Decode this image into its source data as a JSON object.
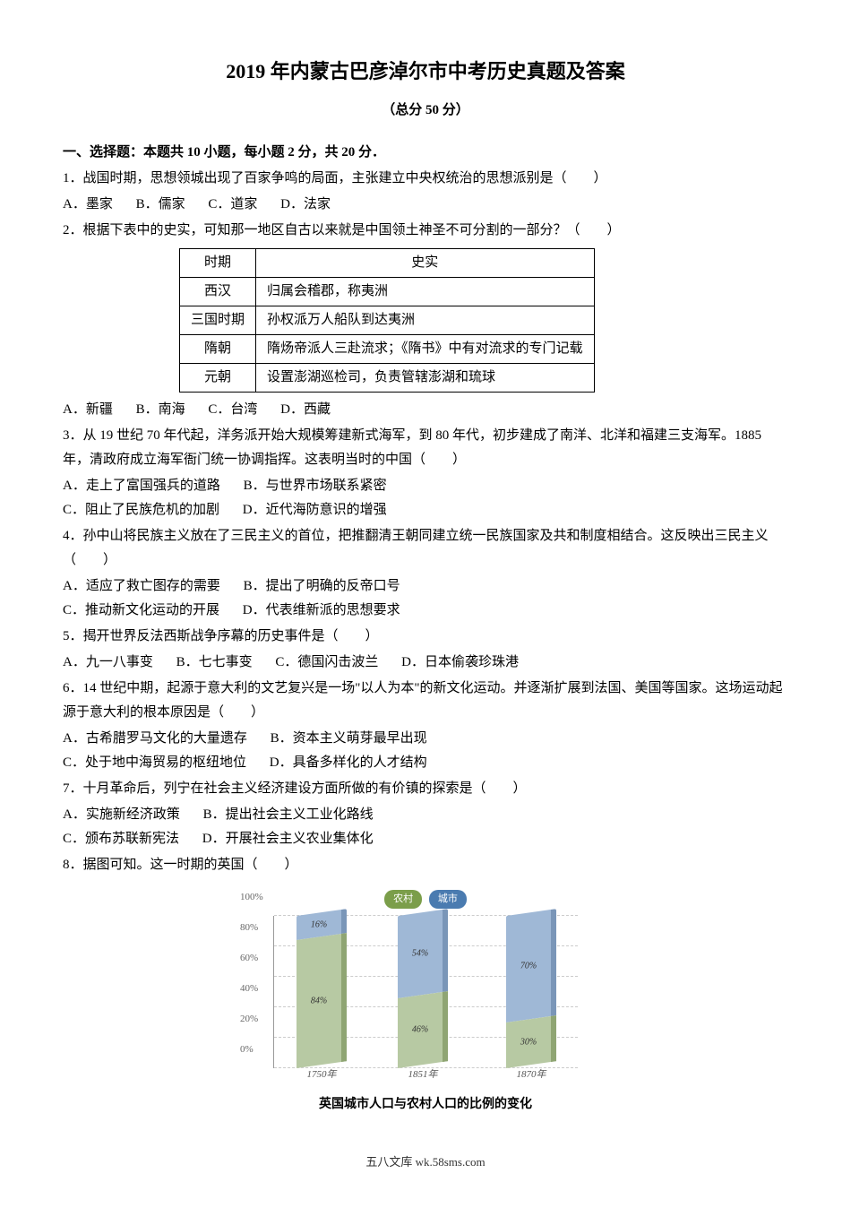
{
  "title": "2019 年内蒙古巴彦淖尔市中考历史真题及答案",
  "subtitle": "（总分 50 分）",
  "section1": {
    "header": "一、选择题：本题共 10 小题，每小题 2 分，共 20 分．",
    "q1": {
      "text": "1．战国时期，思想领城出现了百家争鸣的局面，主张建立中央权统治的思想派别是（　　）",
      "a": "A．墨家",
      "b": "B．儒家",
      "c": "C．道家",
      "d": "D．法家"
    },
    "q2": {
      "text": "2．根据下表中的史实，可知那一地区自古以来就是中国领土神圣不可分割的一部分？（　　）",
      "table": {
        "col1": "时期",
        "col2": "史实",
        "rows": [
          {
            "period": "西汉",
            "fact": "归属会稽郡，称夷洲"
          },
          {
            "period": "三国时期",
            "fact": "孙权派万人船队到达夷洲"
          },
          {
            "period": "隋朝",
            "fact": "隋炀帝派人三赴流求；《隋书》中有对流求的专门记载"
          },
          {
            "period": "元朝",
            "fact": "设置澎湖巡检司，负责管辖澎湖和琉球"
          }
        ]
      },
      "a": "A．新疆",
      "b": "B．南海",
      "c": "C．台湾",
      "d": "D．西藏"
    },
    "q3": {
      "text": "3．从 19 世纪 70 年代起，洋务派开始大规模筹建新式海军，到 80 年代，初步建成了南洋、北洋和福建三支海军。1885 年，清政府成立海军衙门统一协调指挥。这表明当时的中国（　　）",
      "a": "A．走上了富国强兵的道路",
      "b": "B．与世界市场联系紧密",
      "c": "C．阻止了民族危机的加剧",
      "d": "D．近代海防意识的增强"
    },
    "q4": {
      "text": "4．孙中山将民族主义放在了三民主义的首位，把推翻清王朝同建立统一民族国家及共和制度相结合。这反映出三民主义（　　）",
      "a": "A．适应了救亡图存的需要",
      "b": "B．提出了明确的反帝口号",
      "c": "C．推动新文化运动的开展",
      "d": "D．代表维新派的思想要求"
    },
    "q5": {
      "text": "5．揭开世界反法西斯战争序幕的历史事件是（　　）",
      "a": "A．九一八事变",
      "b": "B．七七事变",
      "c": "C．德国闪击波兰",
      "d": "D．日本偷袭珍珠港"
    },
    "q6": {
      "text": "6．14 世纪中期，起源于意大利的文艺复兴是一场\"以人为本\"的新文化运动。并逐渐扩展到法国、美国等国家。这场运动起源于意大利的根本原因是（　　）",
      "a": "A．古希腊罗马文化的大量遗存",
      "b": "B．资本主义萌芽最早出现",
      "c": "C．处于地中海贸易的枢纽地位",
      "d": "D．具备多样化的人才结构"
    },
    "q7": {
      "text": "7．十月革命后，列宁在社会主义经济建设方面所做的有价镇的探索是（　　）",
      "a": "A．实施新经济政策",
      "b": "B．提出社会主义工业化路线",
      "c": "C．颁布苏联新宪法",
      "d": "D．开展社会主义农业集体化"
    },
    "q8": {
      "text": "8．据图可知。这一时期的英国（　　）"
    }
  },
  "chart": {
    "type": "stacked-bar-3d",
    "legend": [
      {
        "label": "农村",
        "color": "#7b9e4a"
      },
      {
        "label": "城市",
        "color": "#4a7bb0"
      }
    ],
    "y_axis": {
      "ticks": [
        "0%",
        "20%",
        "40%",
        "60%",
        "80%",
        "100%"
      ],
      "max": 100
    },
    "bars": [
      {
        "x": "1750年",
        "rural": 84,
        "urban": 16
      },
      {
        "x": "1851年",
        "rural": 46,
        "urban": 54
      },
      {
        "x": "1870年",
        "rural": 30,
        "urban": 70
      }
    ],
    "colors": {
      "rural": "#b7c9a3",
      "urban": "#9fb8d6",
      "rural_side": "#8fa573",
      "urban_side": "#7a96b8",
      "grid": "#d0d0d0"
    },
    "label_fontsize": 10,
    "caption": "英国城市人口与农村人口的比例的变化"
  },
  "footer": "五八文库 wk.58sms.com"
}
